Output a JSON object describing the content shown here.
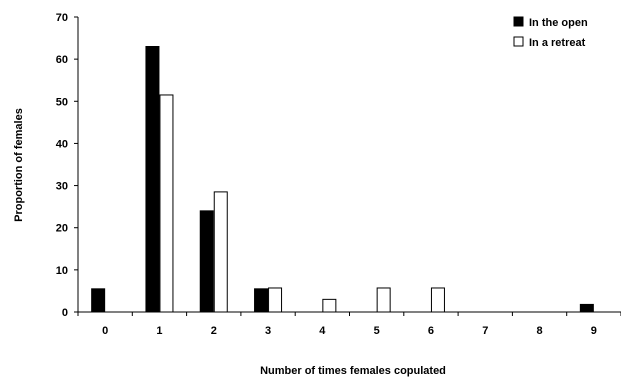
{
  "chart_data": {
    "type": "bar",
    "title": "",
    "xlabel": "Number of times females copulated",
    "ylabel": "Proportion of females",
    "categories": [
      "0",
      "1",
      "2",
      "3",
      "4",
      "5",
      "6",
      "7",
      "8",
      "9"
    ],
    "ylim": [
      0,
      70
    ],
    "yticks": [
      "0",
      "10",
      "20",
      "30",
      "40",
      "50",
      "60",
      "70"
    ],
    "grid": false,
    "legend_position": "top-right",
    "series": [
      {
        "name": "In the open",
        "fill": "#000000",
        "values": [
          5.5,
          63,
          24,
          5.5,
          0,
          0,
          0,
          0,
          0,
          1.8
        ]
      },
      {
        "name": "In a retreat",
        "fill": "#ffffff",
        "values": [
          0,
          51.5,
          28.5,
          5.7,
          3,
          5.7,
          5.7,
          0,
          0,
          0
        ]
      }
    ]
  }
}
